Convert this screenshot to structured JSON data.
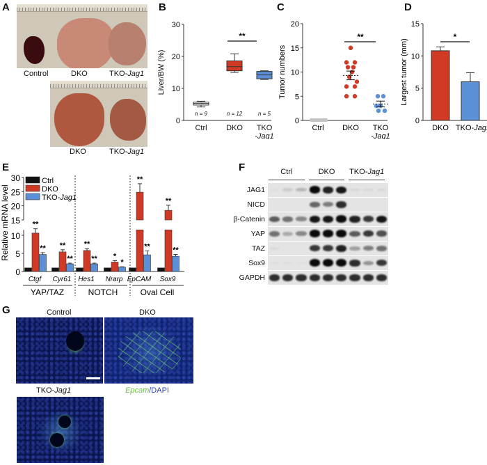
{
  "panels": {
    "A": {
      "label": "A",
      "top_labels": [
        "Control",
        "DKO",
        "TKO-",
        "Jag1"
      ],
      "bottom_labels": [
        "DKO",
        "TKO-",
        "Jag1"
      ]
    },
    "B": {
      "label": "B"
    },
    "C": {
      "label": "C"
    },
    "D": {
      "label": "D"
    },
    "E": {
      "label": "E"
    },
    "F": {
      "label": "F"
    },
    "G": {
      "label": "G",
      "titles": {
        "control": "Control",
        "dko": "DKO",
        "tko_prefix": "TKO-",
        "tko_gene": "Jag1"
      },
      "legend_epcam": "Epcam",
      "legend_dapi": "/DAPI",
      "colors": {
        "epcam": "#6cc04a",
        "dapi": "#2b3fae"
      }
    }
  },
  "colors": {
    "ctrl": "#111111",
    "dko": "#d03a24",
    "tko": "#5b8fd6",
    "ctrl_box": "#ffffff"
  },
  "chart_data": [
    {
      "panel": "B",
      "type": "box",
      "title": "",
      "xlabel": "",
      "ylabel": "Liver/BW (%)",
      "ylim": [
        0,
        30
      ],
      "yticks": [
        0,
        10,
        20,
        30
      ],
      "categories": [
        "Ctrl",
        "DKO",
        "TKO-Jag1"
      ],
      "boxes": [
        {
          "name": "Ctrl",
          "min": 4.2,
          "q1": 4.8,
          "median": 5.3,
          "q3": 5.7,
          "max": 6.0,
          "n": "n = 9"
        },
        {
          "name": "DKO",
          "min": 15.0,
          "q1": 15.5,
          "median": 16.8,
          "q3": 18.6,
          "max": 20.8,
          "n": "n = 12"
        },
        {
          "name": "TKO-Jag1",
          "min": 12.8,
          "q1": 13.0,
          "median": 14.2,
          "q3": 15.3,
          "max": 15.5,
          "n": "n = 5"
        }
      ],
      "annotations": [
        {
          "text": "**",
          "between": [
            "DKO",
            "TKO-Jag1"
          ]
        }
      ]
    },
    {
      "panel": "C",
      "type": "scatter",
      "ylabel": "Tumor numbers",
      "ylim": [
        0,
        20
      ],
      "yticks": [
        0,
        5,
        10,
        15,
        20
      ],
      "categories": [
        "Ctrl",
        "DKO",
        "TKO-Jag1"
      ],
      "series": [
        {
          "name": "Ctrl",
          "values": [
            0,
            0,
            0,
            0,
            0,
            0,
            0,
            0,
            0
          ],
          "mean": 0
        },
        {
          "name": "DKO",
          "values": [
            15,
            12,
            12,
            11,
            11,
            10,
            9,
            8,
            7,
            7,
            5,
            5
          ],
          "mean": 9.3,
          "sem": 0.9
        },
        {
          "name": "TKO-Jag1",
          "values": [
            5,
            5,
            3,
            3,
            2,
            2
          ],
          "mean": 3.4,
          "sem": 0.6
        }
      ],
      "annotations": [
        {
          "text": "**",
          "between": [
            "DKO",
            "TKO-Jag1"
          ]
        }
      ]
    },
    {
      "panel": "D",
      "type": "bar",
      "ylabel": "Largest tumor (mm)",
      "ylim": [
        0,
        15
      ],
      "yticks": [
        0,
        5,
        10,
        15
      ],
      "categories": [
        "DKO",
        "TKO-Jag1"
      ],
      "values": [
        10.8,
        6.0
      ],
      "errors": [
        0.6,
        1.4
      ],
      "annotations": [
        {
          "text": "*",
          "between": [
            "DKO",
            "TKO-Jag1"
          ]
        }
      ]
    },
    {
      "panel": "E",
      "type": "bar",
      "ylabel": "Relative mRNA level",
      "ylim": [
        0,
        30
      ],
      "yticks": [
        0,
        5,
        10,
        15,
        20,
        25,
        30
      ],
      "axis_break": [
        12,
        15
      ],
      "categories": [
        "Ctgf",
        "Cyr61",
        "Hes1",
        "Nrarp",
        "EpCAM",
        "Sox9"
      ],
      "groups": [
        {
          "label": "YAP/TAZ",
          "genes": [
            "Ctgf",
            "Cyr61"
          ]
        },
        {
          "label": "NOTCH",
          "genes": [
            "Hes1",
            "Nrarp"
          ]
        },
        {
          "label": "Oval Cell",
          "genes": [
            "EpCAM",
            "Sox9"
          ]
        }
      ],
      "series": [
        {
          "name": "Ctrl",
          "values": [
            1,
            1,
            1,
            1,
            1,
            1
          ],
          "errors": [
            0,
            0,
            0,
            0,
            0,
            0
          ]
        },
        {
          "name": "DKO",
          "values": [
            10.6,
            5.4,
            5.8,
            2.6,
            24.8,
            18.4
          ],
          "errors": [
            1.2,
            0.6,
            0.5,
            0.4,
            3.0,
            1.8
          ],
          "sig": [
            "**",
            "**",
            "**",
            "*",
            "**",
            "**"
          ]
        },
        {
          "name": "TKO-Jag1",
          "values": [
            4.7,
            2.1,
            2.1,
            1.2,
            4.6,
            4.2
          ],
          "errors": [
            0.5,
            0.2,
            0.2,
            0.1,
            1.1,
            0.5
          ],
          "sig": [
            "**",
            "**",
            "**",
            "*",
            "**",
            "**"
          ]
        }
      ],
      "legend": [
        "Ctrl",
        "DKO",
        "TKO-Jag1"
      ],
      "legend_position": "upper-left"
    },
    {
      "panel": "F",
      "type": "western_blot",
      "groups": [
        "Ctrl",
        "DKO",
        "TKO-Jag1"
      ],
      "lanes_per_group": 3,
      "rows": [
        {
          "label": "JAG1",
          "intensities": [
            0.02,
            0.1,
            0.2,
            0.95,
            0.85,
            0.9,
            0.05,
            0.04,
            0.04
          ]
        },
        {
          "label": "NICD",
          "intensities": [
            0,
            0,
            0,
            0.55,
            0.45,
            0.8,
            0,
            0,
            0
          ]
        },
        {
          "label": "β-Catenin",
          "intensities": [
            0.6,
            0.5,
            0.4,
            0.9,
            0.9,
            0.95,
            0.85,
            0.75,
            0.9
          ]
        },
        {
          "label": "YAP",
          "intensities": [
            0.5,
            0.25,
            0.4,
            0.95,
            0.95,
            0.95,
            0.6,
            0.75,
            0.65
          ]
        },
        {
          "label": "TAZ",
          "intensities": [
            0.05,
            0,
            0,
            0.75,
            0.75,
            0.85,
            0.3,
            0.45,
            0.5
          ]
        },
        {
          "label": "Sox9",
          "intensities": [
            0.02,
            0.02,
            0.02,
            1.0,
            1.0,
            1.0,
            0.8,
            0.35,
            0.75
          ]
        },
        {
          "label": "GAPDH",
          "intensities": [
            0.8,
            0.8,
            0.8,
            0.8,
            0.8,
            0.8,
            0.8,
            0.8,
            0.8
          ]
        }
      ]
    }
  ]
}
